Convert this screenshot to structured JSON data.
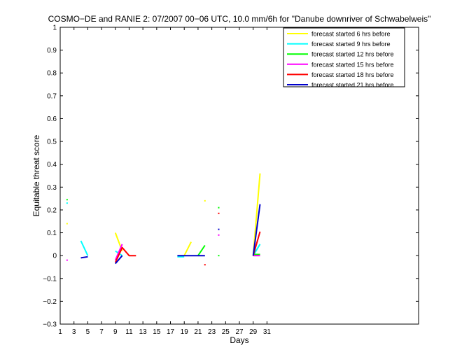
{
  "chart_data": {
    "type": "line",
    "title": "COSMO−DE and RANIE 2: 07/2007 00−06 UTC, 10.0 mm/6h for \"Danube downriver of Schwabelweis\"",
    "xlabel": "Days",
    "ylabel": "Equitable threat score",
    "xlim": [
      1,
      53
    ],
    "ylim": [
      -0.3,
      1
    ],
    "xticks": [
      1,
      3,
      5,
      7,
      9,
      11,
      13,
      15,
      17,
      19,
      21,
      23,
      25,
      27,
      29,
      31
    ],
    "xticklabels": [
      "1",
      "3",
      "5",
      "7",
      "9",
      "11",
      "13",
      "15",
      "17",
      "19",
      "21",
      "23",
      "25",
      "27",
      "29",
      "31"
    ],
    "yticks": [
      -0.3,
      -0.2,
      -0.1,
      0,
      0.1,
      0.2,
      0.3,
      0.4,
      0.5,
      0.6,
      0.7,
      0.8,
      0.9,
      1
    ],
    "yticklabels": [
      "−0.3",
      "−0.2",
      "−0.1",
      "0",
      "0.1",
      "0.2",
      "0.3",
      "0.4",
      "0.5",
      "0.6",
      "0.7",
      "0.8",
      "0.9",
      "1"
    ],
    "legend_position": "top-right",
    "grid": false,
    "series": [
      {
        "name": "forecast started 6 hrs before",
        "color": "#ffff00",
        "segments": [
          [
            [
              9,
              0.1
            ],
            [
              10,
              0.02
            ]
          ],
          [
            [
              19,
              0.0
            ],
            [
              20,
              0.06
            ]
          ],
          [
            [
              29,
              0.0
            ],
            [
              30,
              0.36
            ]
          ]
        ],
        "points": [
          [
            2,
            0.14
          ],
          [
            22,
            0.24
          ]
        ]
      },
      {
        "name": "forecast started 9 hrs before",
        "color": "#00ffff",
        "segments": [
          [
            [
              4,
              0.065
            ],
            [
              5,
              0.0
            ]
          ],
          [
            [
              9,
              0.02
            ],
            [
              10,
              0.0
            ]
          ],
          [
            [
              18,
              -0.005
            ],
            [
              19,
              -0.005
            ]
          ],
          [
            [
              29,
              0.0
            ],
            [
              30,
              0.05
            ]
          ]
        ],
        "points": [
          [
            2,
            0.23
          ]
        ]
      },
      {
        "name": "forecast started 12 hrs before",
        "color": "#00ff00",
        "segments": [
          [
            [
              21,
              0.0
            ],
            [
              22,
              0.045
            ]
          ],
          [
            [
              29,
              0.005
            ],
            [
              30,
              0.005
            ]
          ]
        ],
        "points": [
          [
            2,
            0.245
          ],
          [
            24,
            0.21
          ],
          [
            24,
            0.0
          ]
        ]
      },
      {
        "name": "forecast started 15 hrs before",
        "color": "#ff00ff",
        "segments": [
          [
            [
              9,
              -0.02
            ],
            [
              10,
              0.05
            ]
          ],
          [
            [
              29,
              0.0
            ],
            [
              30,
              0.0
            ]
          ]
        ],
        "points": [
          [
            2,
            -0.02
          ],
          [
            24,
            0.09
          ]
        ]
      },
      {
        "name": "forecast started 18 hrs before",
        "color": "#ff0000",
        "segments": [
          [
            [
              9,
              -0.03
            ],
            [
              10,
              0.035
            ],
            [
              11,
              0.0
            ],
            [
              12,
              0.0
            ]
          ],
          [
            [
              29,
              0.0
            ],
            [
              30,
              0.105
            ]
          ]
        ],
        "points": [
          [
            22,
            -0.04
          ],
          [
            24,
            0.185
          ]
        ]
      },
      {
        "name": "forecast started 21 hrs before",
        "color": "#0000cc",
        "segments": [
          [
            [
              4,
              -0.01
            ],
            [
              5,
              -0.005
            ]
          ],
          [
            [
              9,
              -0.035
            ],
            [
              10,
              0.0
            ]
          ],
          [
            [
              18,
              0.0
            ],
            [
              22,
              0.0
            ]
          ],
          [
            [
              29,
              0.0
            ],
            [
              30,
              0.225
            ]
          ]
        ],
        "points": [
          [
            24,
            0.115
          ]
        ]
      }
    ]
  }
}
